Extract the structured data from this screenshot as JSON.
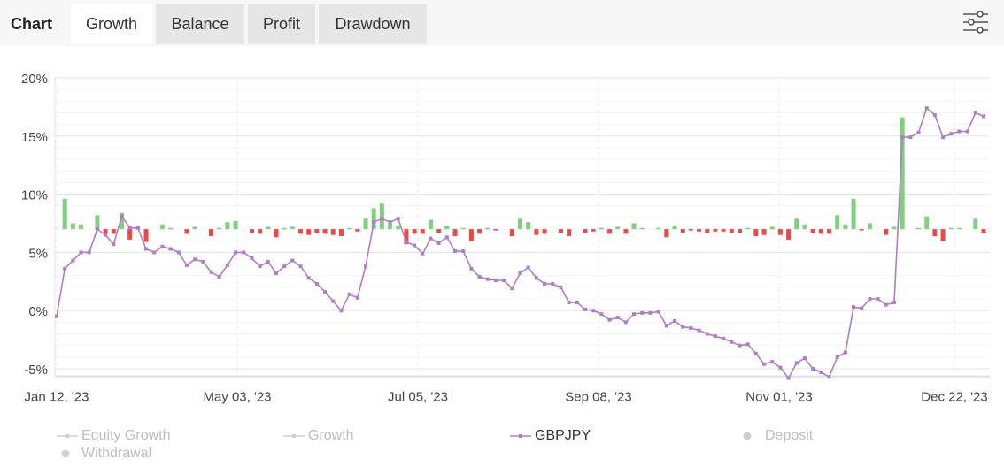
{
  "header": {
    "title": "Chart",
    "tabs": [
      {
        "label": "Growth",
        "active": true
      },
      {
        "label": "Balance",
        "active": false
      },
      {
        "label": "Profit",
        "active": false
      },
      {
        "label": "Drawdown",
        "active": false
      }
    ],
    "settings_icon": "sliders-icon"
  },
  "chart_data": {
    "type": "line",
    "title": "",
    "xlabel": "",
    "ylabel": "",
    "ylim": [
      -5.5,
      20
    ],
    "yticks": [
      20,
      15,
      10,
      5,
      0,
      -5
    ],
    "ytick_labels": [
      "20%",
      "15%",
      "10%",
      "5%",
      "0%",
      "-5%"
    ],
    "xtick_labels": [
      "Jan 12, '23",
      "May 03, '23",
      "Jul 05, '23",
      "Sep 08, '23",
      "Nov 01, '23",
      "Dec 22, '23"
    ],
    "grid": true,
    "series": [
      {
        "name": "GBPJPY",
        "color": "#b07cc6",
        "values": [
          -0.5,
          3.6,
          4.3,
          5.0,
          5.0,
          7.0,
          6.5,
          5.7,
          8.1,
          7.1,
          7.1,
          5.3,
          5.0,
          5.5,
          5.3,
          5.0,
          3.9,
          4.4,
          4.2,
          3.3,
          2.9,
          3.9,
          5.0,
          5.0,
          4.5,
          3.8,
          4.2,
          3.2,
          3.8,
          4.3,
          3.8,
          2.8,
          2.3,
          1.6,
          0.8,
          0.0,
          1.4,
          1.1,
          3.8,
          7.6,
          7.9,
          7.6,
          7.9,
          5.9,
          5.6,
          4.9,
          6.2,
          5.8,
          6.3,
          5.1,
          5.1,
          3.6,
          2.9,
          2.7,
          2.6,
          2.6,
          1.9,
          3.2,
          3.7,
          2.8,
          2.3,
          2.3,
          2.0,
          0.7,
          0.7,
          0.1,
          0.0,
          -0.3,
          -0.8,
          -0.6,
          -1.0,
          -0.3,
          -0.2,
          -0.2,
          -0.1,
          -1.3,
          -0.9,
          -1.4,
          -1.5,
          -1.7,
          -2.0,
          -2.2,
          -2.4,
          -2.7,
          -3.0,
          -2.9,
          -3.7,
          -4.6,
          -4.4,
          -4.9,
          -5.8,
          -4.5,
          -4.1,
          -5.0,
          -5.3,
          -5.7,
          -4.0,
          -3.6,
          0.3,
          0.2,
          1.0,
          1.0,
          0.5,
          0.7,
          14.9,
          14.9,
          15.3,
          17.4,
          16.8,
          14.9,
          15.2,
          15.4,
          15.4,
          17.0,
          16.7
        ]
      }
    ],
    "profit_bars": {
      "baseline": 7.0,
      "positive_color": "#7ed07e",
      "negative_color": "#f04646",
      "values": [
        0,
        2.6,
        0.5,
        0.4,
        0,
        1.2,
        -0.4,
        -0.4,
        1.4,
        -0.9,
        0.2,
        -1.1,
        0,
        0.4,
        0.1,
        0,
        -0.4,
        0.2,
        0,
        -0.6,
        0.1,
        0.6,
        0.7,
        0,
        -0.3,
        -0.4,
        0.2,
        -0.7,
        0.1,
        0.2,
        -0.4,
        -0.5,
        -0.3,
        -0.4,
        -0.5,
        -0.6,
        0.1,
        -0.2,
        0.9,
        1.8,
        2.2,
        0.5,
        0.3,
        -1.3,
        -0.4,
        -0.4,
        0.8,
        -0.3,
        0.3,
        -0.6,
        0.1,
        -1.0,
        -0.4,
        0.1,
        -0.1,
        0,
        -0.6,
        0.9,
        0.6,
        -0.5,
        -0.4,
        0,
        -0.3,
        -0.6,
        0,
        -0.3,
        -0.2,
        0.1,
        -0.4,
        0.2,
        -0.4,
        0.5,
        0.1,
        0,
        0.1,
        -0.7,
        0.3,
        -0.3,
        -0.1,
        -0.2,
        -0.3,
        -0.2,
        -0.2,
        -0.3,
        -0.3,
        0.1,
        -0.6,
        -0.5,
        0.2,
        -0.5,
        -0.9,
        0.9,
        0.4,
        -0.3,
        -0.4,
        -0.4,
        1.2,
        0.4,
        2.6,
        -0.1,
        0.5,
        0,
        -0.5,
        0.2,
        9.6,
        0,
        0.1,
        1.1,
        -0.6,
        -1.0,
        0.1,
        0.1,
        0,
        0.9,
        -0.3
      ]
    }
  },
  "legend": {
    "items": [
      {
        "label": "Equity Growth",
        "color": "#cfcfcf",
        "text_color": "#bdbdbd",
        "icon": "line-marker-icon"
      },
      {
        "label": "Growth",
        "color": "#cfcfcf",
        "text_color": "#bdbdbd",
        "icon": "line-marker-icon"
      },
      {
        "label": "GBPJPY",
        "color": "#b07cc6",
        "text_color": "#333333",
        "icon": "line-marker-icon"
      },
      {
        "label": "Deposit",
        "color": "#cfcfcf",
        "text_color": "#bdbdbd",
        "icon": "dot-icon"
      },
      {
        "label": "Withdrawal",
        "color": "#cfcfcf",
        "text_color": "#bdbdbd",
        "icon": "dot-icon"
      }
    ]
  }
}
